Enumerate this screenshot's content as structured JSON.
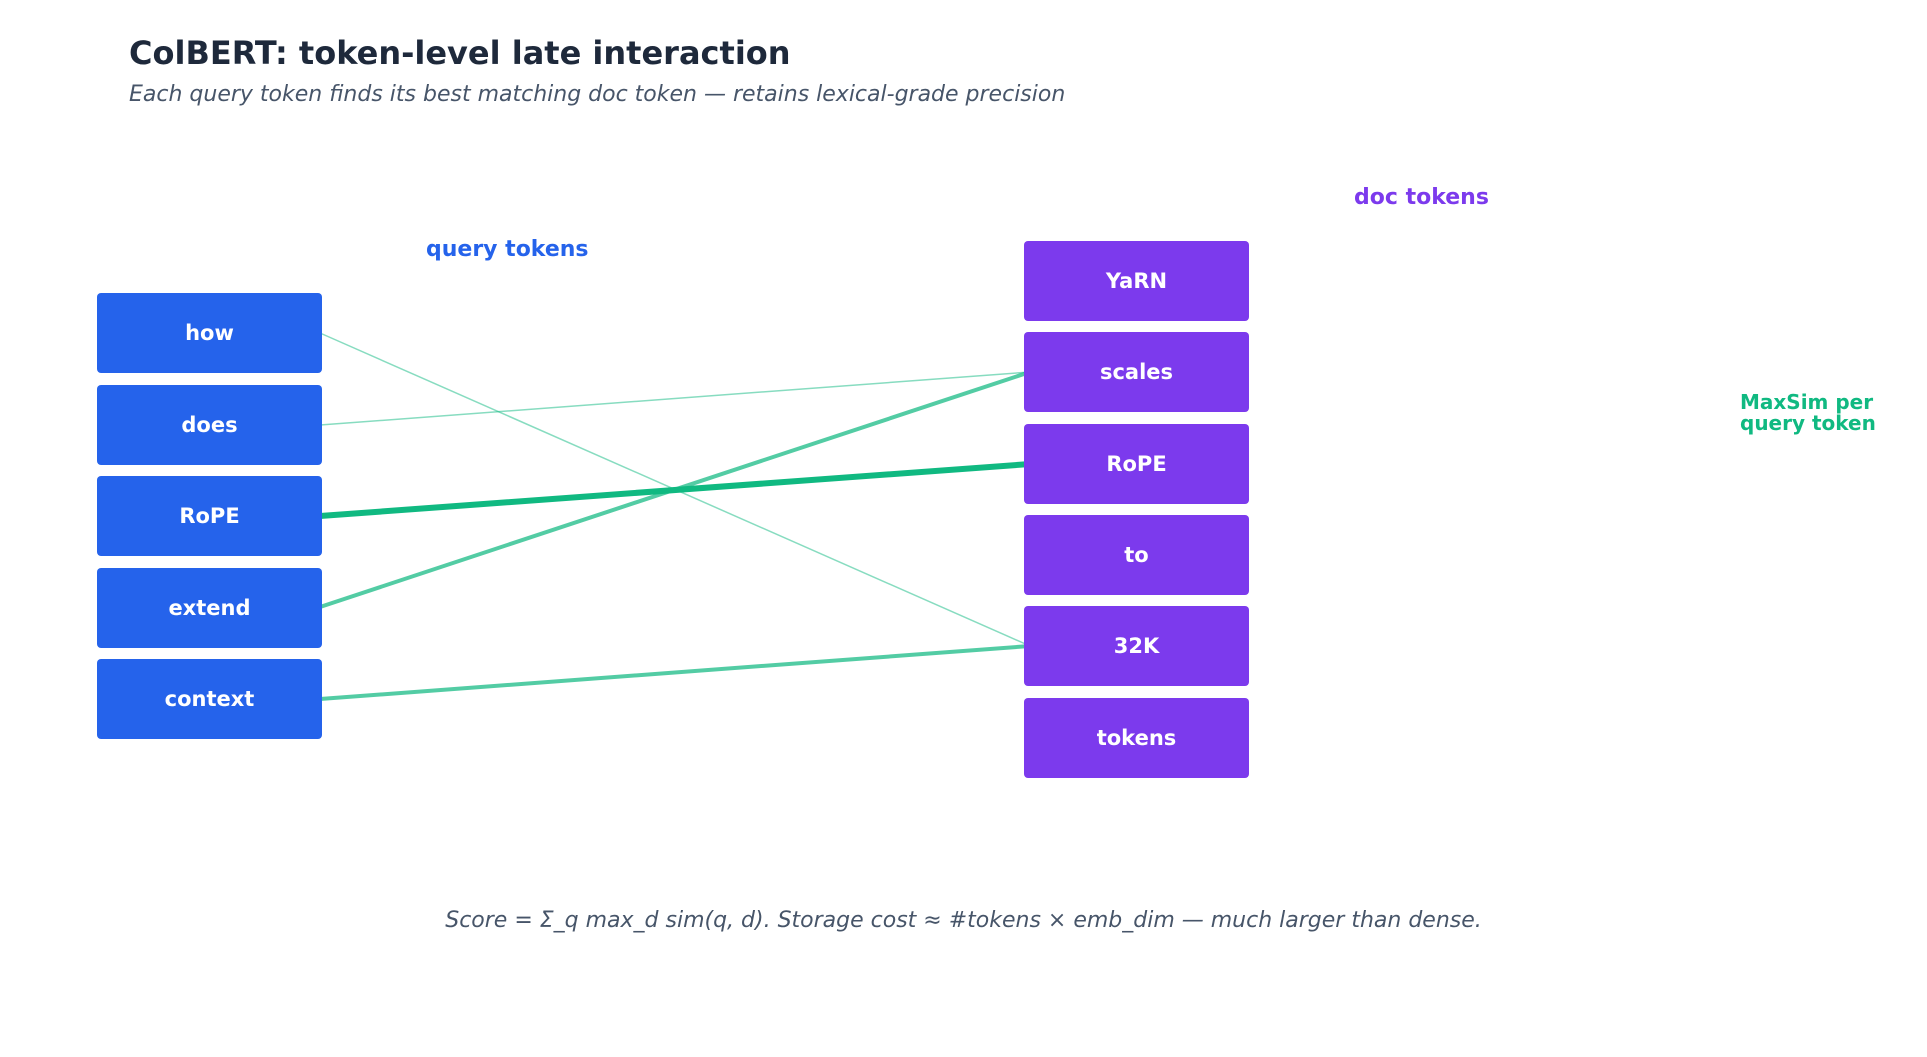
{
  "title": "ColBERT: token-level late interaction",
  "subtitle": "Each query token finds its best matching doc token — retains lexical-grade precision",
  "query_label": "query tokens",
  "doc_label": "doc tokens",
  "side_note_line1": "MaxSim per",
  "side_note_line2": "query token",
  "footer": "Score = Σ_q max_d sim(q, d). Storage cost ≈ #tokens × emb_dim — much larger than dense.",
  "colors": {
    "query": "#2563eb",
    "doc": "#7c3aed",
    "link": "#10b981",
    "title": "#1e293b",
    "subtitle": "#475569"
  },
  "query_tokens": [
    "how",
    "does",
    "RoPE",
    "extend",
    "context"
  ],
  "doc_tokens": [
    "YaRN",
    "scales",
    "RoPE",
    "to",
    "32K",
    "tokens"
  ],
  "links": [
    {
      "from": "how",
      "to": "32K",
      "strength": "weak"
    },
    {
      "from": "does",
      "to": "scales",
      "strength": "weak"
    },
    {
      "from": "RoPE",
      "to": "RoPE",
      "strength": "strong"
    },
    {
      "from": "extend",
      "to": "scales",
      "strength": "medium"
    },
    {
      "from": "context",
      "to": "32K",
      "strength": "medium"
    }
  ]
}
